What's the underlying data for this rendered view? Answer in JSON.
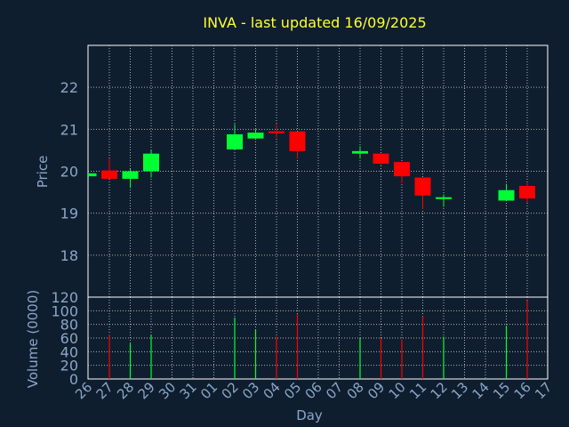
{
  "colors": {
    "background": "#0f1e2e",
    "title": "#ffff33",
    "axis_text": "#8aa6c8",
    "up": "#00ff33",
    "down": "#ff0000",
    "grid": "#e0e0e0"
  },
  "chart_data": [
    {
      "type": "candlestick",
      "title": "INVA - last updated 16/09/2025",
      "ylabel": "Price",
      "ylim": [
        17.0,
        23.0
      ],
      "yticks": [
        18,
        19,
        20,
        21,
        22
      ],
      "grid": true,
      "days": [
        "26",
        "27",
        "28",
        "29",
        "30",
        "31",
        "01",
        "02",
        "03",
        "04",
        "05",
        "06",
        "07",
        "08",
        "09",
        "10",
        "11",
        "12",
        "13",
        "14",
        "15",
        "16",
        "17"
      ],
      "candles": [
        {
          "day": "26",
          "open": 19.88,
          "high": 19.95,
          "low": 19.85,
          "close": 19.95
        },
        {
          "day": "27",
          "open": 20.02,
          "high": 20.3,
          "low": 19.82,
          "close": 19.82
        },
        {
          "day": "28",
          "open": 19.82,
          "high": 20.05,
          "low": 19.6,
          "close": 20.0
        },
        {
          "day": "29",
          "open": 20.0,
          "high": 20.5,
          "low": 19.85,
          "close": 20.42
        },
        {
          "day": "02",
          "open": 20.52,
          "high": 21.12,
          "low": 20.52,
          "close": 20.88
        },
        {
          "day": "03",
          "open": 20.78,
          "high": 21.0,
          "low": 20.78,
          "close": 20.92
        },
        {
          "day": "04",
          "open": 20.95,
          "high": 21.12,
          "low": 20.8,
          "close": 20.92
        },
        {
          "day": "05",
          "open": 20.95,
          "high": 20.95,
          "low": 20.3,
          "close": 20.48
        },
        {
          "day": "08",
          "open": 20.42,
          "high": 20.6,
          "low": 20.3,
          "close": 20.48
        },
        {
          "day": "09",
          "open": 20.42,
          "high": 20.42,
          "low": 20.15,
          "close": 20.18
        },
        {
          "day": "10",
          "open": 20.22,
          "high": 20.22,
          "low": 19.72,
          "close": 19.88
        },
        {
          "day": "11",
          "open": 19.85,
          "high": 19.85,
          "low": 19.1,
          "close": 19.42
        },
        {
          "day": "12",
          "open": 19.35,
          "high": 19.45,
          "low": 19.15,
          "close": 19.38
        },
        {
          "day": "15",
          "open": 19.3,
          "high": 19.7,
          "low": 19.3,
          "close": 19.55
        },
        {
          "day": "16",
          "open": 19.65,
          "high": 19.72,
          "low": 19.25,
          "close": 19.35
        }
      ]
    },
    {
      "type": "bar",
      "title": "",
      "xlabel": "Day",
      "ylabel": "Volume (0000)",
      "ylim": [
        0,
        120
      ],
      "yticks": [
        0,
        20,
        40,
        60,
        80,
        100,
        120
      ],
      "grid": true,
      "bars": [
        {
          "day": "27",
          "value": 65,
          "direction": "down"
        },
        {
          "day": "28",
          "value": 52,
          "direction": "up"
        },
        {
          "day": "29",
          "value": 65,
          "direction": "up"
        },
        {
          "day": "02",
          "value": 90,
          "direction": "up"
        },
        {
          "day": "03",
          "value": 72,
          "direction": "up"
        },
        {
          "day": "04",
          "value": 62,
          "direction": "down"
        },
        {
          "day": "05",
          "value": 95,
          "direction": "down"
        },
        {
          "day": "08",
          "value": 60,
          "direction": "up"
        },
        {
          "day": "09",
          "value": 60,
          "direction": "down"
        },
        {
          "day": "10",
          "value": 58,
          "direction": "down"
        },
        {
          "day": "11",
          "value": 92,
          "direction": "down"
        },
        {
          "day": "12",
          "value": 62,
          "direction": "up"
        },
        {
          "day": "15",
          "value": 78,
          "direction": "up"
        },
        {
          "day": "16",
          "value": 115,
          "direction": "down"
        }
      ]
    }
  ]
}
